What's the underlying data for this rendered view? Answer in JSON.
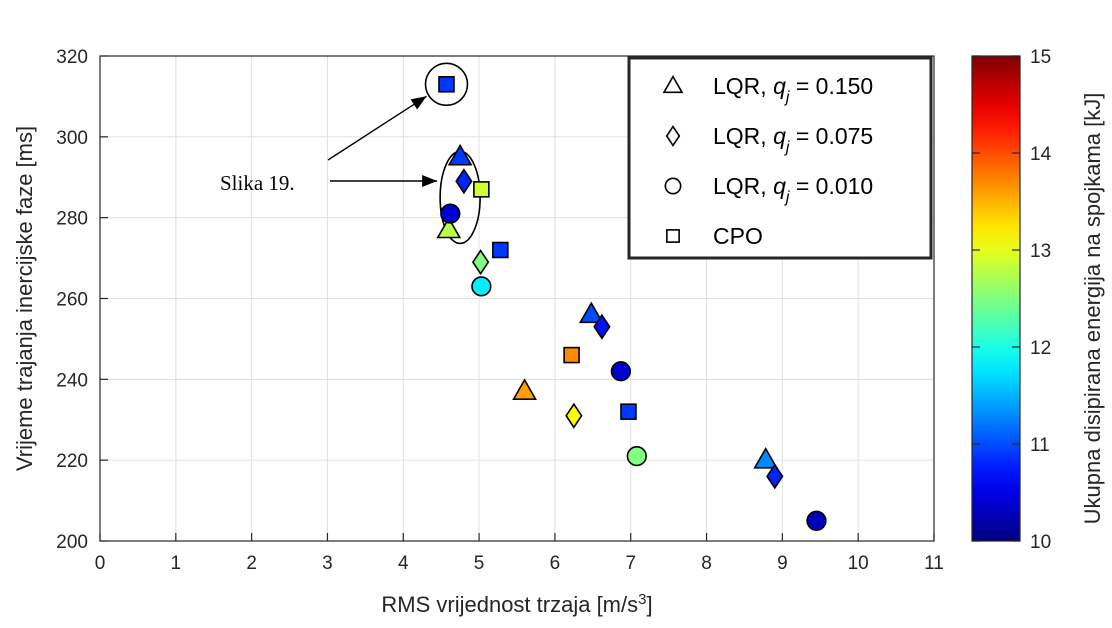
{
  "chart_data": {
    "type": "scatter",
    "xlabel": "RMS vrijednost trzaja [m/s",
    "xlabel_sup": "3",
    "xlabel_end": "]",
    "ylabel": "Vrijeme trajanja inercijske faze [ms]",
    "xlim": [
      0,
      11
    ],
    "ylim": [
      200,
      320
    ],
    "xticks": [
      "0",
      "1",
      "2",
      "3",
      "4",
      "5",
      "6",
      "7",
      "8",
      "9",
      "10",
      "11"
    ],
    "yticks": [
      "200",
      "220",
      "240",
      "260",
      "280",
      "300",
      "320"
    ],
    "grid": true,
    "legend_position": "top-right",
    "colorbar": {
      "label": "Ukupna disipirana energija na spojkama [kJ]",
      "range": [
        10,
        15
      ],
      "ticks": [
        "10",
        "11",
        "12",
        "13",
        "14",
        "15"
      ],
      "colormap": "jet"
    },
    "series": [
      {
        "name": "LQR, q_j = 0.150",
        "legend_label": {
          "pre": "LQR, ",
          "var": "q",
          "sub": "j",
          "post": " = 0.150"
        },
        "marker": "triangle",
        "points": [
          {
            "x": 4.75,
            "y": 295,
            "c": 10.9
          },
          {
            "x": 4.6,
            "y": 277,
            "c": 12.8
          },
          {
            "x": 6.48,
            "y": 256,
            "c": 11.0
          },
          {
            "x": 5.6,
            "y": 237,
            "c": 13.6
          },
          {
            "x": 8.78,
            "y": 220,
            "c": 11.3
          }
        ]
      },
      {
        "name": "LQR, q_j = 0.075",
        "legend_label": {
          "pre": "LQR, ",
          "var": "q",
          "sub": "j",
          "post": " = 0.075"
        },
        "marker": "diamond",
        "points": [
          {
            "x": 4.8,
            "y": 289,
            "c": 10.8
          },
          {
            "x": 5.02,
            "y": 269,
            "c": 12.5
          },
          {
            "x": 6.62,
            "y": 253,
            "c": 10.7
          },
          {
            "x": 6.25,
            "y": 231,
            "c": 13.1
          },
          {
            "x": 8.9,
            "y": 216,
            "c": 10.8
          }
        ]
      },
      {
        "name": "LQR, q_j = 0.010",
        "legend_label": {
          "pre": "LQR, ",
          "var": "q",
          "sub": "j",
          "post": " = 0.010"
        },
        "marker": "circle",
        "points": [
          {
            "x": 4.62,
            "y": 281,
            "c": 10.4
          },
          {
            "x": 5.03,
            "y": 263,
            "c": 11.8
          },
          {
            "x": 6.87,
            "y": 242,
            "c": 10.4
          },
          {
            "x": 7.08,
            "y": 221,
            "c": 12.5
          },
          {
            "x": 9.45,
            "y": 205,
            "c": 10.3
          }
        ]
      },
      {
        "name": "CPO",
        "legend_label": {
          "pre": "CPO",
          "var": "",
          "sub": "",
          "post": ""
        },
        "marker": "square",
        "points": [
          {
            "x": 4.57,
            "y": 313,
            "c": 10.9
          },
          {
            "x": 5.03,
            "y": 287,
            "c": 12.9
          },
          {
            "x": 5.28,
            "y": 272,
            "c": 10.9
          },
          {
            "x": 6.22,
            "y": 246,
            "c": 13.7
          },
          {
            "x": 6.97,
            "y": 232,
            "c": 10.9
          }
        ]
      }
    ],
    "annotations": [
      {
        "text": "Slika 19."
      }
    ]
  }
}
